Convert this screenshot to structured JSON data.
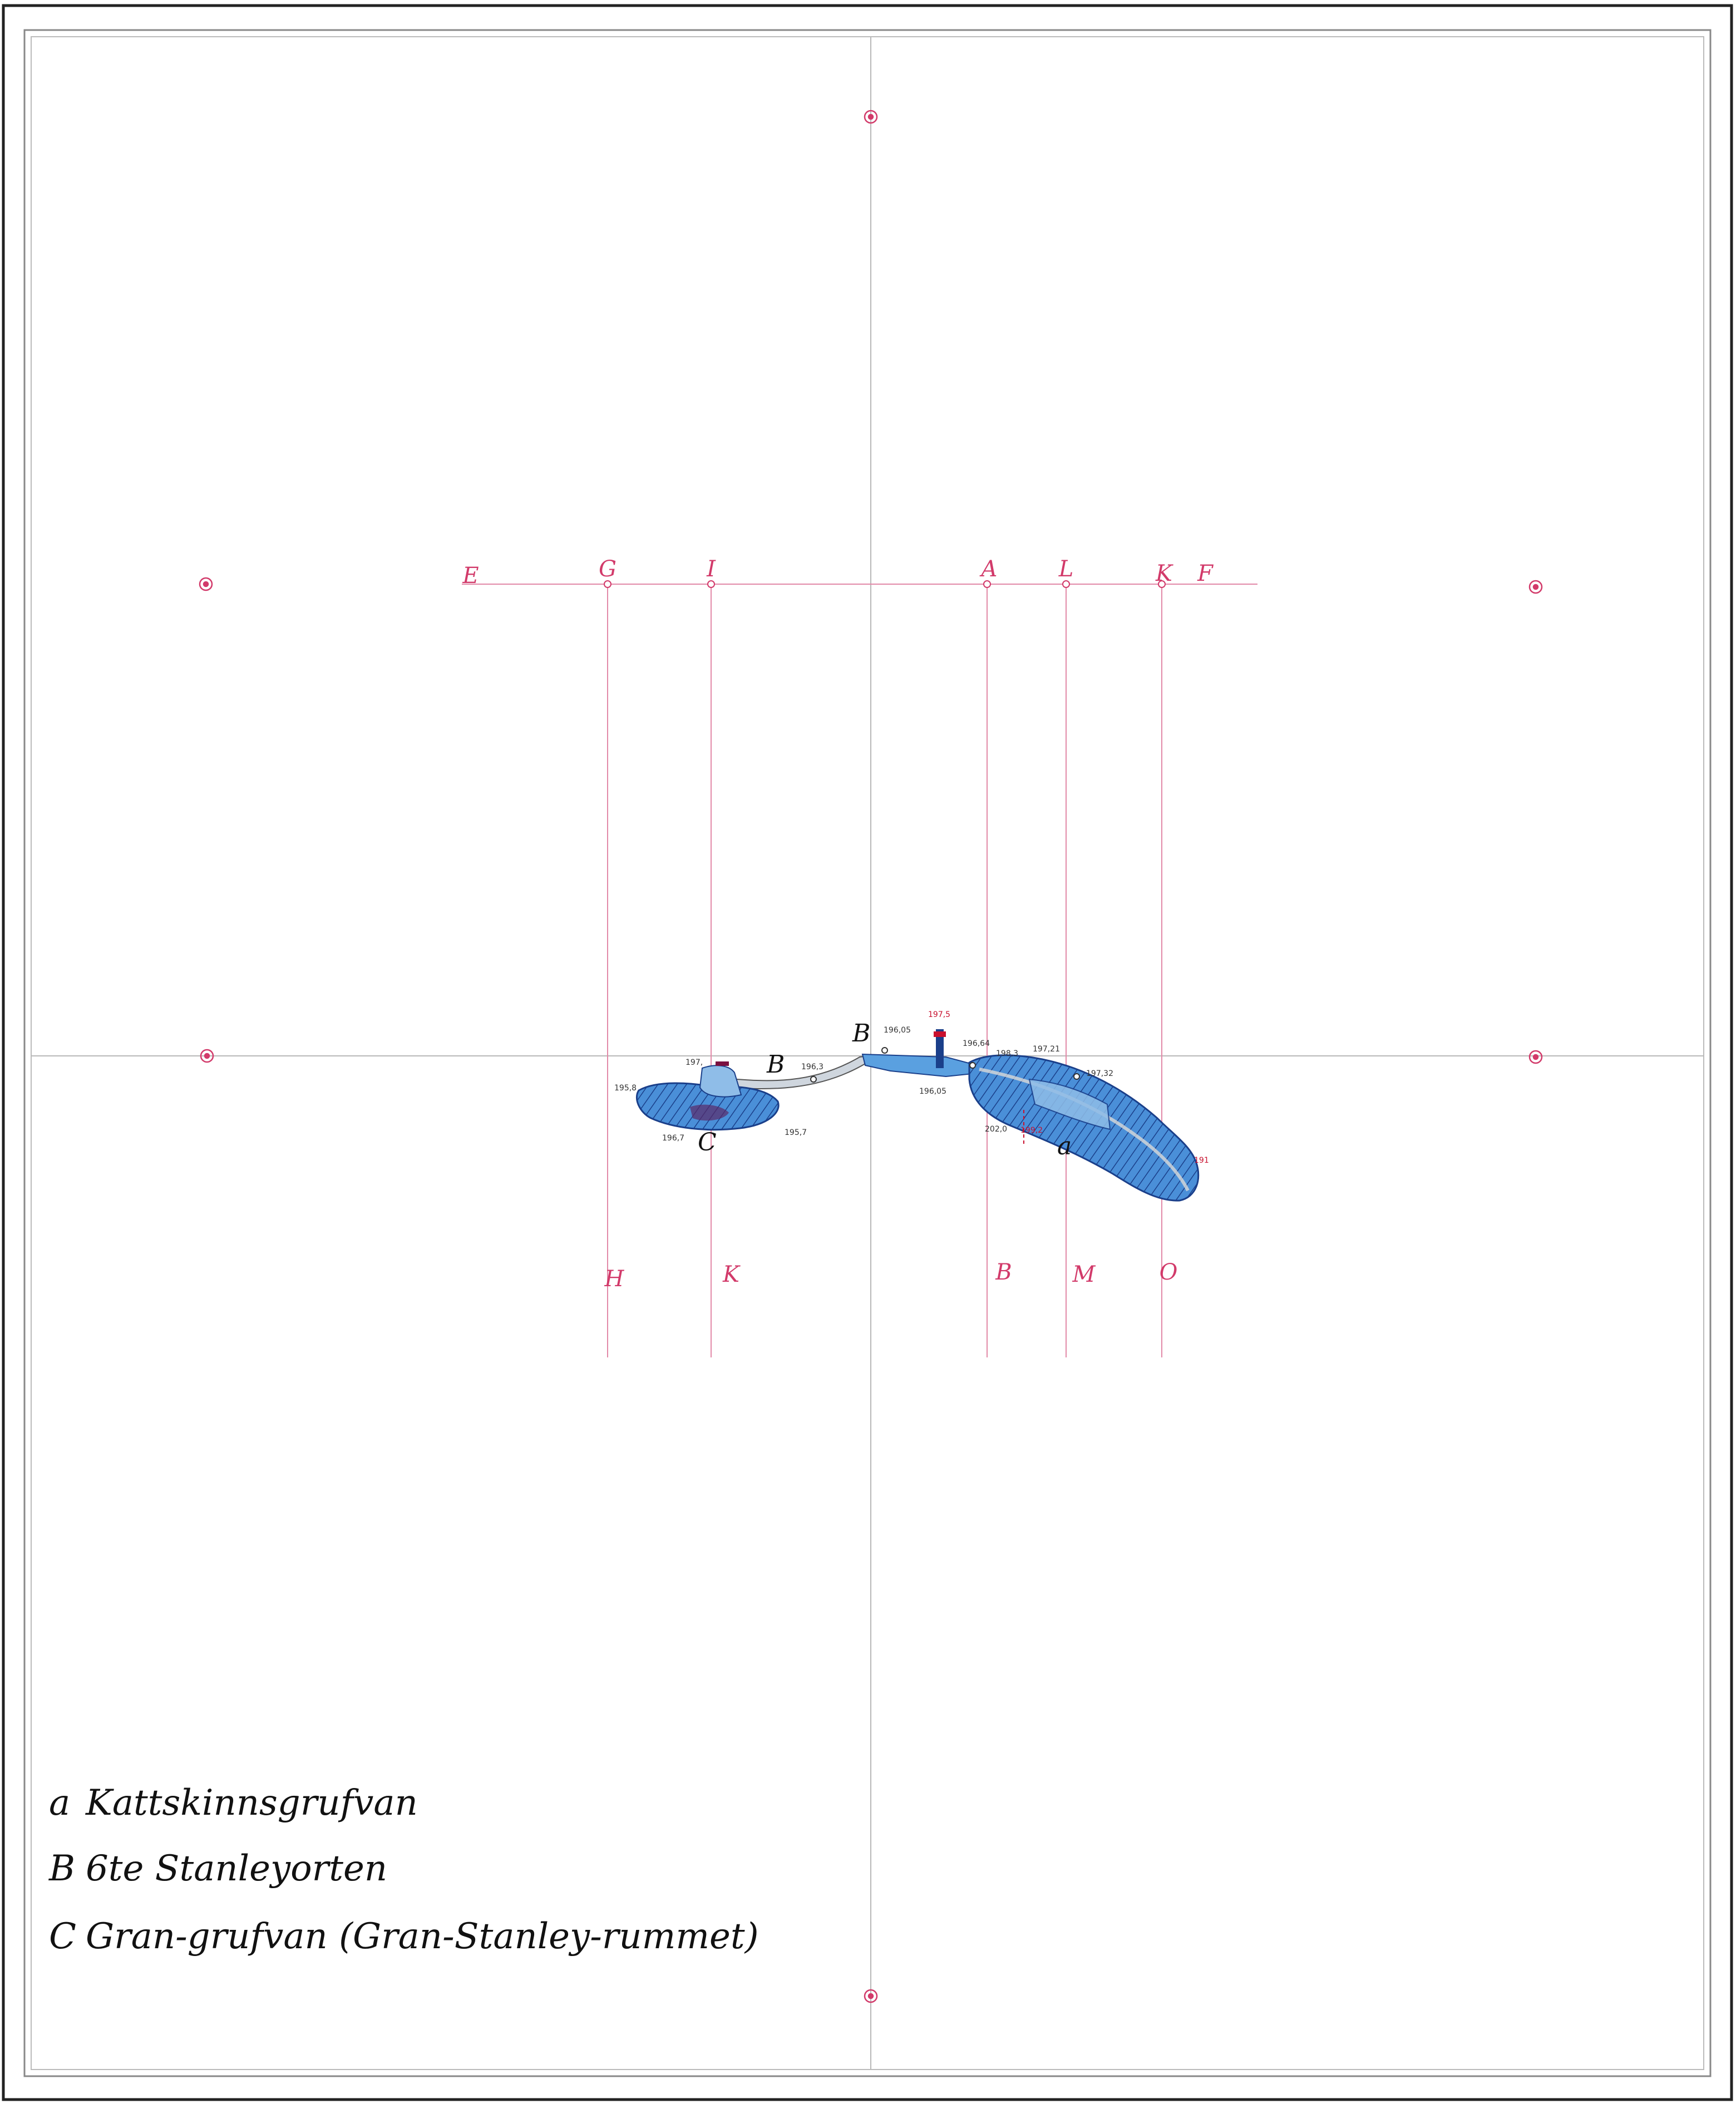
{
  "grid_letters_top": [
    "E",
    "G",
    "I",
    "A",
    "L",
    "K",
    "F"
  ],
  "grid_letters_bottom": [
    "H",
    "K",
    "B",
    "M",
    "O"
  ],
  "mine_labels": {
    "a": "a",
    "b1": "B",
    "b2": "B",
    "c": "C"
  },
  "elevations": {
    "e1": "197,",
    "e2": "195,8",
    "e3": "196,3",
    "e4": "196,7",
    "e5": "195,7",
    "e6": "196,05",
    "e7": "197,5",
    "e8": "196,64",
    "e9": "198,3",
    "e10": "197,21",
    "e11": "197,32",
    "e12": "196,05",
    "e13": "202,0",
    "e14": "199,2",
    "e15": "191"
  },
  "legend": {
    "items": [
      {
        "key": "a",
        "label": "Kattskinnsgrufvan"
      },
      {
        "key": "B",
        "label": "6te Stanleyorten"
      },
      {
        "key": "C",
        "label": "Gran-grufvan (Gran-Stanley-rummet)"
      }
    ]
  },
  "colors": {
    "frame": "#222222",
    "grid": "#b8b8b8",
    "survey": "#d23a6a",
    "mine_fill": "#3f86d2",
    "mine_fill_light": "#8fbde8",
    "hatch": "#1a3f8a"
  }
}
